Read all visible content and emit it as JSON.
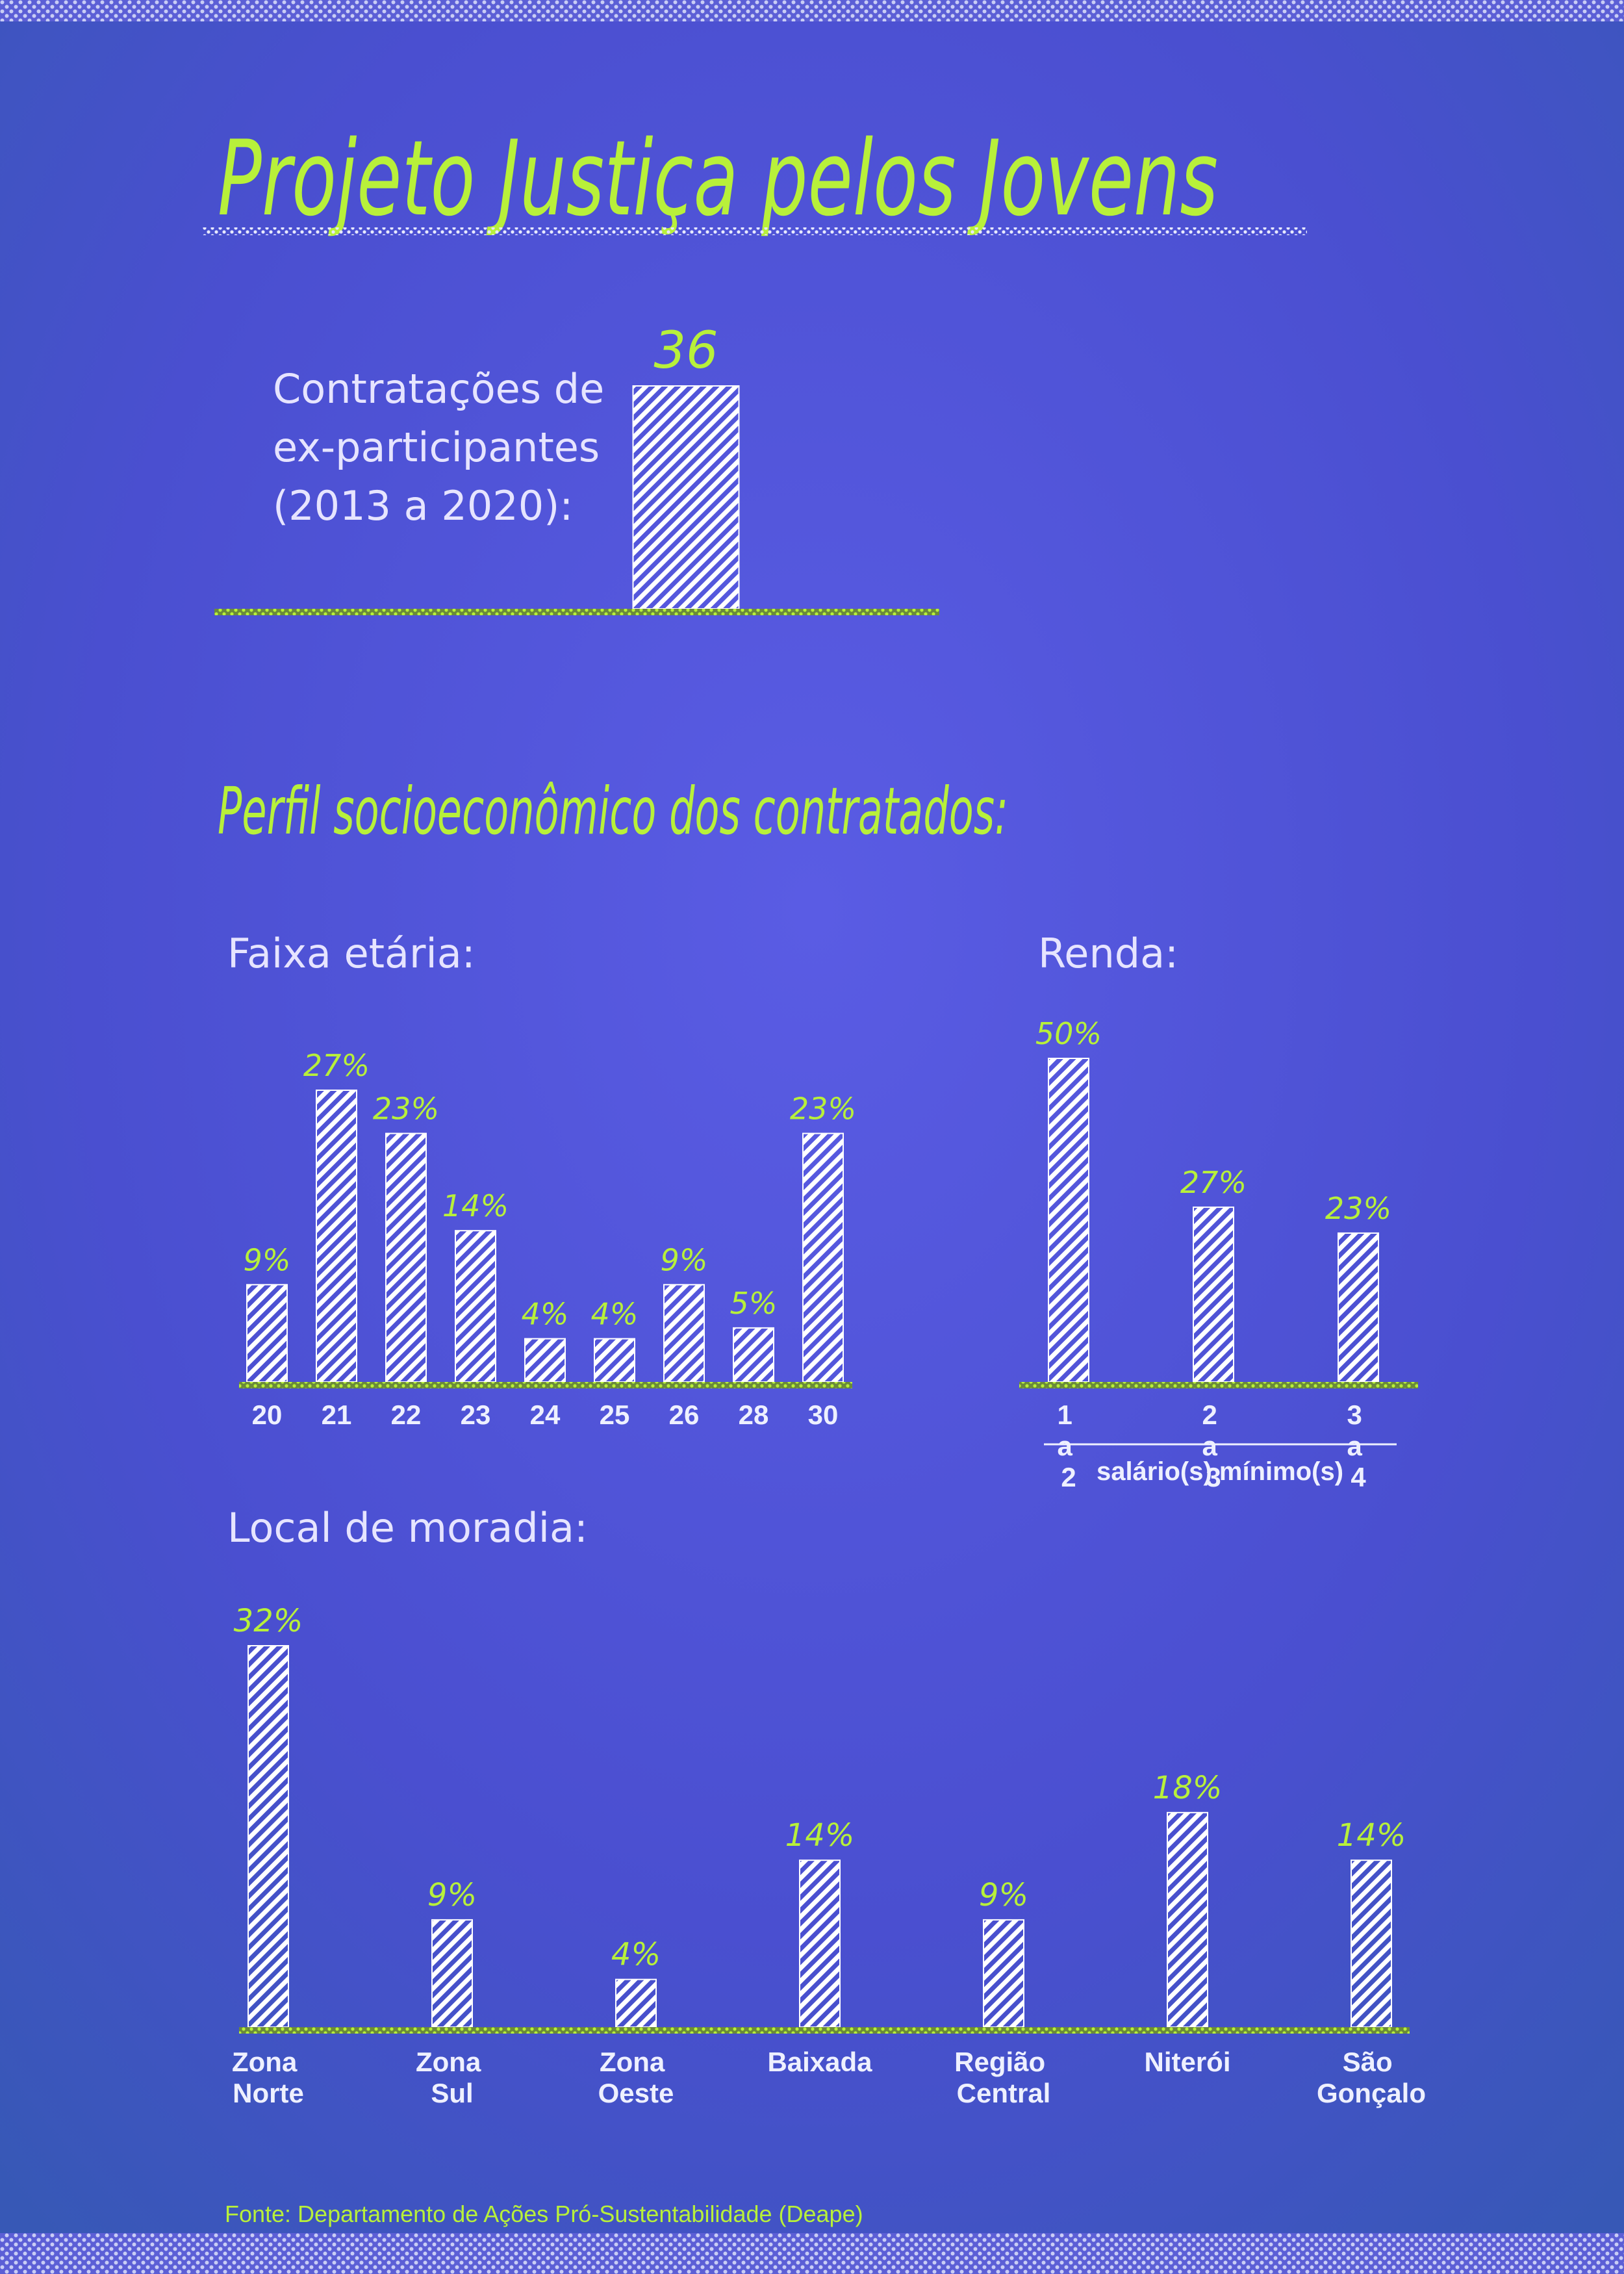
{
  "title": "Projeto Justiça pelos Jovens",
  "section_title": "Perfil socioeconômico dos contratados:",
  "source": "Fonte: Departamento de Ações Pró-Sustentabilidade (Deape)",
  "chart_data": [
    {
      "type": "bar",
      "title": [
        "Contratações de",
        "ex-participantes",
        "(2013 a 2020):"
      ],
      "categories": [
        null
      ],
      "values": [
        36
      ],
      "color": "#ffffff"
    },
    {
      "type": "bar",
      "title": "Faixa etária:",
      "categories": [
        "20",
        "21",
        "22",
        "23",
        "24",
        "25",
        "26",
        "28",
        "30"
      ],
      "values": [
        9,
        27,
        23,
        14,
        4,
        4,
        9,
        5,
        23
      ],
      "value_labels": [
        "9%",
        "27%",
        "23%",
        "14%",
        "4%",
        "4%",
        "9%",
        "5%",
        "23%"
      ],
      "color": "#ffffff"
    },
    {
      "type": "bar",
      "title": "Renda:",
      "x_label": "salário(s) mínimo(s)",
      "categories": [
        "1 a 2",
        "2 a 3",
        "3 a 4"
      ],
      "values": [
        50,
        27,
        23
      ],
      "value_labels": [
        "50%",
        "27%",
        "23%"
      ],
      "color": "#ffffff"
    },
    {
      "type": "bar",
      "title": "Local de moradia:",
      "categories": [
        "Zona Norte",
        "Zona Sul",
        "Zona Oeste",
        "Baixada",
        "Região Central",
        "Niterói",
        "São Gonçalo"
      ],
      "values": [
        32,
        9,
        4,
        14,
        9,
        18,
        14
      ],
      "value_labels": [
        "32%",
        "9%",
        "4%",
        "14%",
        "9%",
        "18%",
        "14%"
      ],
      "color": "#ffffff"
    }
  ]
}
